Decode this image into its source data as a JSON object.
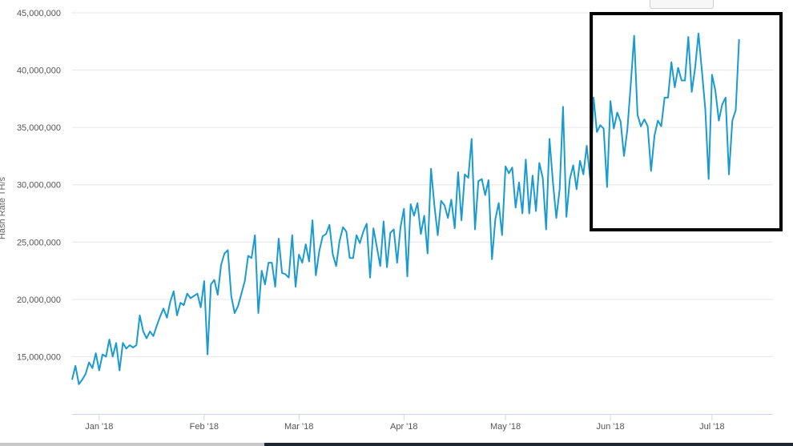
{
  "chart_data": {
    "type": "line",
    "title": "",
    "xlabel": "",
    "ylabel": "Hash Rate TH/s",
    "ylim": [
      10000000,
      45000000
    ],
    "yticks": [
      15000000,
      20000000,
      25000000,
      30000000,
      35000000,
      40000000,
      45000000
    ],
    "ytick_labels": [
      "15,000,000",
      "20,000,000",
      "25,000,000",
      "30,000,000",
      "35,000,000",
      "40,000,000",
      "45,000,000"
    ],
    "xlim": [
      "2017-12-24",
      "2018-07-19"
    ],
    "xticks": [
      "2018-01-01",
      "2018-02-01",
      "2018-03-01",
      "2018-04-01",
      "2018-05-01",
      "2018-06-01",
      "2018-07-01"
    ],
    "xtick_labels": [
      "Jan '18",
      "Feb '18",
      "Mar '18",
      "Apr '18",
      "May '18",
      "Jun '18",
      "Jul '18"
    ],
    "grid": "horizontal",
    "line_color": "#1a9bd0",
    "highlight_box": {
      "start": "2018-06-01",
      "end": "2018-07-19",
      "color": "#000000"
    },
    "series": [
      {
        "start_date": "2017-12-24",
        "step_days": 1,
        "values": [
          13000000,
          14200000,
          12600000,
          13000000,
          13500000,
          14500000,
          14000000,
          15300000,
          13800000,
          15200000,
          15000000,
          16500000,
          15000000,
          16200000,
          13800000,
          16200000,
          15700000,
          16000000,
          15800000,
          16000000,
          18600000,
          17200000,
          16600000,
          17200000,
          16800000,
          17700000,
          18500000,
          19200000,
          18400000,
          19800000,
          20700000,
          18600000,
          19700000,
          19500000,
          20500000,
          20100000,
          20300000,
          20500000,
          19300000,
          21600000,
          15200000,
          21300000,
          21700000,
          20400000,
          23000000,
          24000000,
          24300000,
          20300000,
          18800000,
          19400000,
          20500000,
          21600000,
          23800000,
          23600000,
          25600000,
          18800000,
          22500000,
          21300000,
          23200000,
          23200000,
          21100000,
          25300000,
          22300000,
          22200000,
          21900000,
          25600000,
          21100000,
          23900000,
          23200000,
          24800000,
          23300000,
          26900000,
          22100000,
          24200000,
          25500000,
          25700000,
          26500000,
          23900000,
          22900000,
          25100000,
          26300000,
          25900000,
          23600000,
          23600000,
          25600000,
          24900000,
          25900000,
          26600000,
          21900000,
          26200000,
          24600000,
          22900000,
          26800000,
          22800000,
          25800000,
          26100000,
          23200000,
          26300000,
          27900000,
          22000000,
          28300000,
          27300000,
          28400000,
          25700000,
          27300000,
          24000000,
          31400000,
          28200000,
          25600000,
          28600000,
          28200000,
          27100000,
          28700000,
          26200000,
          31100000,
          26900000,
          30900000,
          30600000,
          34000000,
          26100000,
          30300000,
          30500000,
          29100000,
          30400000,
          23500000,
          27000000,
          28400000,
          25600000,
          31600000,
          31000000,
          31500000,
          28000000,
          30200000,
          27500000,
          32200000,
          27500000,
          30800000,
          27700000,
          31900000,
          30600000,
          26100000,
          34000000,
          30300000,
          27100000,
          29600000,
          36800000,
          27200000,
          30500000,
          31700000,
          29600000,
          32100000,
          30900000,
          33400000,
          30600000,
          37600000,
          34600000,
          35200000,
          34900000,
          29800000,
          37300000,
          34900000,
          36300000,
          35500000,
          32500000,
          34800000,
          38800000,
          43000000,
          36100000,
          35100000,
          35700000,
          35100000,
          31200000,
          34300000,
          35600000,
          35100000,
          37600000,
          37600000,
          40700000,
          38500000,
          40200000,
          39100000,
          39100000,
          42900000,
          38100000,
          40200000,
          43200000,
          40000000,
          36600000,
          30500000,
          39600000,
          38200000,
          35600000,
          37000000,
          37600000,
          30900000,
          35600000,
          36500000,
          42700000
        ]
      }
    ]
  }
}
